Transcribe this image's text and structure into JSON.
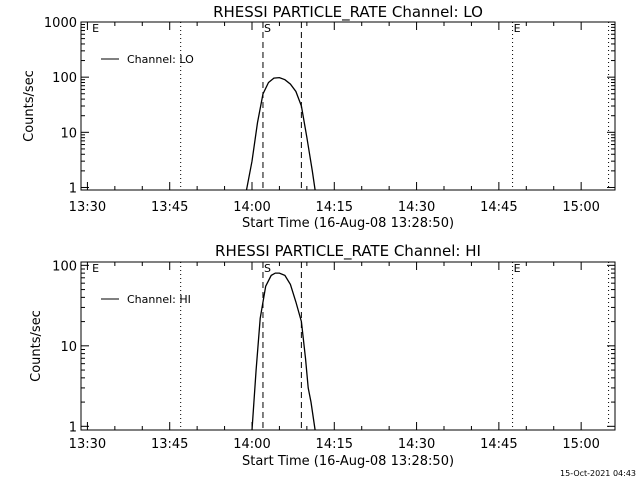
{
  "footer_timestamp": "15-Oct-2021 04:43",
  "chart_data": [
    {
      "type": "line",
      "title": "RHESSI PARTICLE_RATE Channel: LO",
      "xlabel": "Start Time (16-Aug-08 13:28:50)",
      "ylabel": "Counts/sec",
      "y_scale": "log",
      "ylim": [
        0.9,
        1000
      ],
      "xlim_minutes": [
        -1.17,
        96.17
      ],
      "x_tick_labels": [
        "13:30",
        "13:45",
        "14:00",
        "14:15",
        "14:30",
        "14:45",
        "15:00"
      ],
      "y_tick_labels": [
        "1",
        "10",
        "100",
        "1000"
      ],
      "y_tick_values": [
        1,
        10,
        100,
        1000
      ],
      "legend": {
        "label": "Channel: LO",
        "placement": "top-left"
      },
      "dotted_lines_time": [
        "13:47:00",
        "14:47:30",
        "15:05:00"
      ],
      "dashed_lines_time": [
        "14:02:00",
        "14:09:00"
      ],
      "markers": [
        {
          "text": "E",
          "time": "13:30:40"
        },
        {
          "text": "S",
          "time": "14:02:00"
        },
        {
          "text": "E",
          "time": "14:47:30"
        }
      ],
      "series": [
        {
          "name": "Channel: LO",
          "x_time": [
            "13:59:00",
            "14:00:00",
            "14:01:00",
            "14:02:00",
            "14:03:00",
            "14:04:00",
            "14:05:00",
            "14:06:00",
            "14:07:00",
            "14:08:00",
            "14:09:00",
            "14:10:00",
            "14:11:00",
            "14:11:30"
          ],
          "y": [
            0.9,
            3,
            15,
            50,
            80,
            96,
            98,
            90,
            75,
            55,
            30,
            8,
            2,
            0.9
          ]
        }
      ]
    },
    {
      "type": "line",
      "title": "RHESSI PARTICLE_RATE Channel: HI",
      "xlabel": "Start Time (16-Aug-08 13:28:50)",
      "ylabel": "Counts/sec",
      "y_scale": "log",
      "ylim": [
        0.9,
        110
      ],
      "xlim_minutes": [
        -1.17,
        96.17
      ],
      "x_tick_labels": [
        "13:30",
        "13:45",
        "14:00",
        "14:15",
        "14:30",
        "14:45",
        "15:00"
      ],
      "y_tick_labels": [
        "1",
        "10",
        "100"
      ],
      "y_tick_values": [
        1,
        10,
        100
      ],
      "legend": {
        "label": "Channel: HI",
        "placement": "top-left"
      },
      "dotted_lines_time": [
        "13:47:00",
        "14:47:30",
        "15:05:00"
      ],
      "dashed_lines_time": [
        "14:02:00",
        "14:09:00"
      ],
      "markers": [
        {
          "text": "E",
          "time": "13:30:40"
        },
        {
          "text": "S",
          "time": "14:02:00"
        },
        {
          "text": "E",
          "time": "14:47:30"
        }
      ],
      "series": [
        {
          "name": "Channel: HI",
          "x_time": [
            "14:00:00",
            "14:00:45",
            "14:01:30",
            "14:02:30",
            "14:03:30",
            "14:04:15",
            "14:05:00",
            "14:06:00",
            "14:07:00",
            "14:08:00",
            "14:09:00",
            "14:09:45",
            "14:10:15",
            "14:10:45",
            "14:11:30"
          ],
          "y": [
            0.9,
            5,
            22,
            55,
            75,
            80,
            80,
            75,
            58,
            35,
            20,
            7,
            3,
            2,
            0.9
          ]
        }
      ]
    }
  ]
}
